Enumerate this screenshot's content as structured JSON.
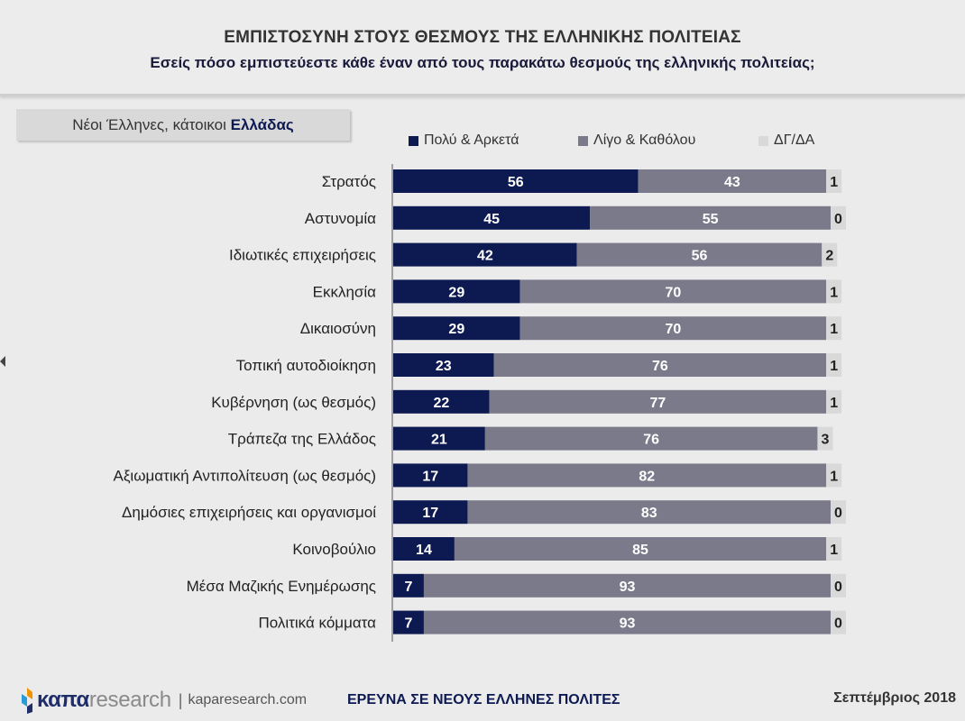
{
  "header": {
    "title": "ΕΜΠΙΣΤΟΣΥΝΗ ΣΤΟΥΣ ΘΕΣΜΟΥΣ ΤΗΣ ΕΛΛΗΝΙΚΗΣ ΠΟΛΙΤΕΙΑΣ",
    "subtitle": "Εσείς πόσο εμπιστεύεστε κάθε έναν από τους παρακάτω θεσμούς της ελληνικής πολιτείας;"
  },
  "sample": {
    "prefix": "Νέοι Έλληνες, κάτοικοι ",
    "highlight": "Ελλάδας"
  },
  "colors": {
    "series1": "#0d1a52",
    "series2": "#7a7a8a",
    "series3": "#d9d9d9"
  },
  "chart_data": {
    "type": "bar",
    "orientation": "horizontal",
    "stacked": true,
    "categories": [
      "Στρατός",
      "Αστυνομία",
      "Ιδιωτικές επιχειρήσεις",
      "Εκκλησία",
      "Δικαιοσύνη",
      "Τοπική αυτοδιοίκηση",
      "Κυβέρνηση (ως θεσμός)",
      "Τράπεζα της Ελλάδος",
      "Αξιωματική Αντιπολίτευση (ως θεσμός)",
      "Δημόσιες επιχειρήσεις και οργανισμοί",
      "Κοινοβούλιο",
      "Μέσα Μαζικής Ενημέρωσης",
      "Πολιτικά κόμματα"
    ],
    "series": [
      {
        "name": "Πολύ & Αρκετά",
        "values": [
          56,
          45,
          42,
          29,
          29,
          23,
          22,
          21,
          17,
          17,
          14,
          7,
          7
        ]
      },
      {
        "name": "Λίγο & Καθόλου",
        "values": [
          43,
          55,
          56,
          70,
          70,
          76,
          77,
          76,
          82,
          83,
          85,
          93,
          93
        ]
      },
      {
        "name": "ΔΓ/ΔΑ",
        "values": [
          1,
          0,
          2,
          1,
          1,
          1,
          1,
          3,
          1,
          0,
          1,
          0,
          0
        ]
      }
    ],
    "legend_position": "top",
    "grid": false
  },
  "footer": {
    "logo_part1": "καπα",
    "logo_part2": "research",
    "separator": "|",
    "url": "kaparesearch.com",
    "center": "ΕΡΕΥΝΑ ΣΕ ΝΕΟΥΣ ΕΛΛΗΝΕΣ ΠΟΛΙΤΕΣ",
    "date": "Σεπτέμβριος 2018"
  }
}
